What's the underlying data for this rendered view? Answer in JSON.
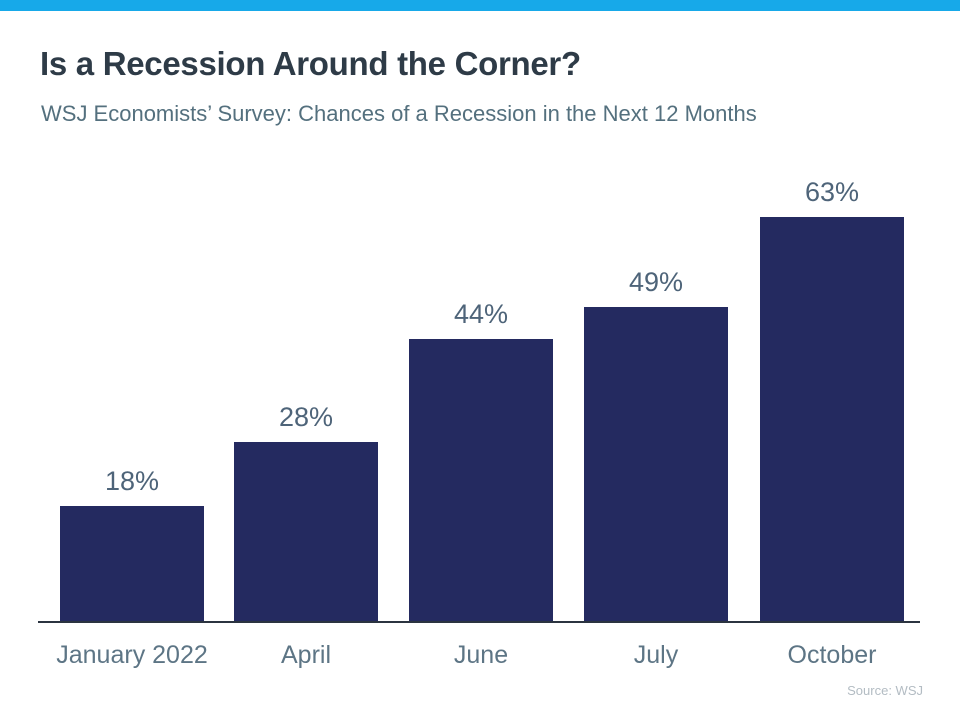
{
  "page": {
    "title": "Is a Recession Around the Corner?",
    "subtitle": "WSJ Economists’ Survey: Chances of a Recession in the Next 12 Months",
    "source": "Source: WSJ"
  },
  "colors": {
    "accent_stripe": "#17a9e9",
    "title_text": "#2e3b47",
    "subtitle_text": "#54707e",
    "bar_fill": "#242a60",
    "data_label_text": "#4e6479",
    "axis_label_text": "#5d7585",
    "axis_line": "#2b3440",
    "source_text": "#b3bcc3",
    "background": "#ffffff"
  },
  "chart_data": {
    "type": "bar",
    "title": "Is a Recession Around the Corner?",
    "subtitle": "WSJ Economists’ Survey: Chances of a Recession in the Next 12 Months",
    "categories": [
      "January 2022",
      "April",
      "June",
      "July",
      "October"
    ],
    "values": [
      18,
      28,
      44,
      49,
      63
    ],
    "value_labels": [
      "18%",
      "28%",
      "44%",
      "49%",
      "63%"
    ],
    "xlabel": "",
    "ylabel": "",
    "ylim": [
      0,
      70
    ],
    "grid": false,
    "legend": false,
    "bar_color": "#242a60",
    "source": "Source: WSJ"
  }
}
